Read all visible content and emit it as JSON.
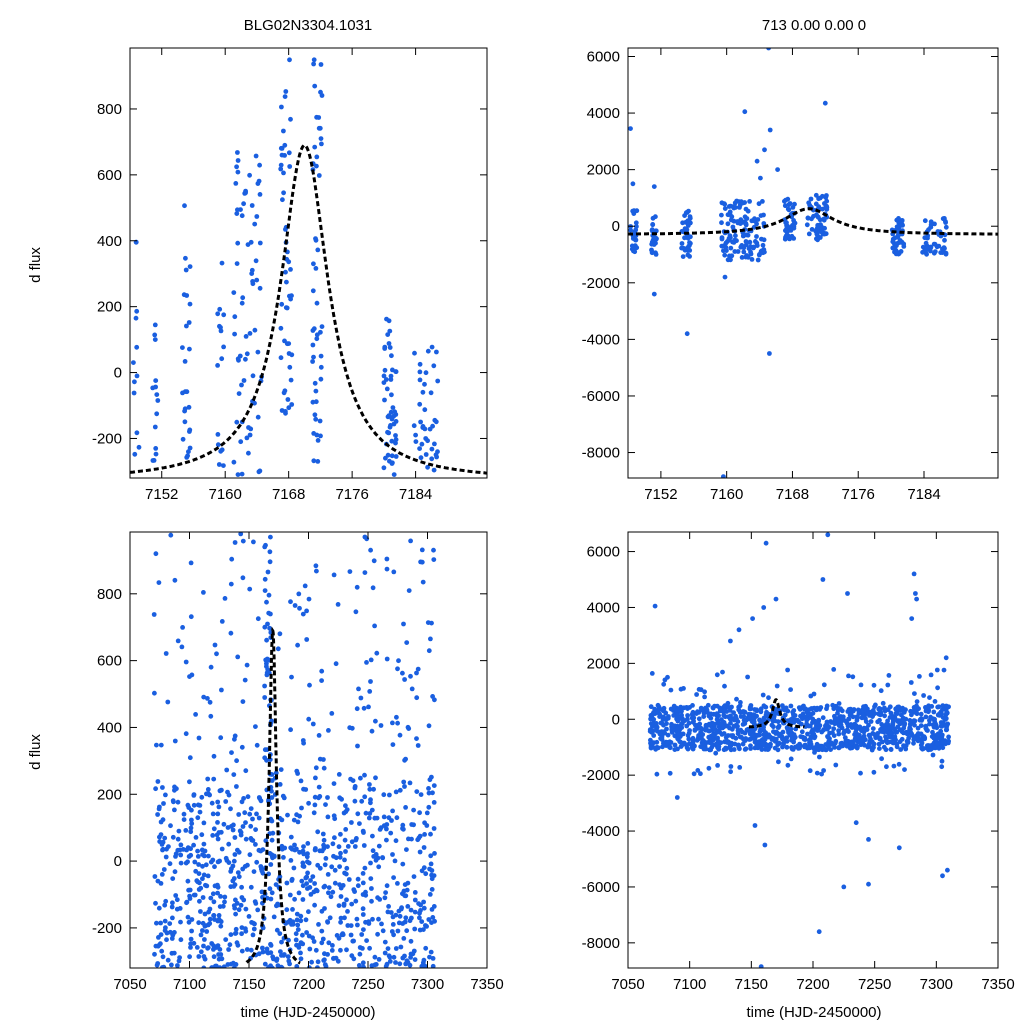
{
  "figure": {
    "titles": {
      "left": "BLG02N3304.1031",
      "right": "713  0.00  0.00  0"
    },
    "ylabel": "d flux",
    "xlabel": "time (HJD-2450000)"
  },
  "chart_data": [
    {
      "name": "top-left",
      "type": "scatter",
      "xlim": [
        7148,
        7193
      ],
      "ylim": [
        -320,
        985
      ],
      "xticks": [
        7152,
        7160,
        7168,
        7176,
        7184
      ],
      "yticks": [
        -200,
        0,
        200,
        400,
        600,
        800
      ],
      "model": {
        "t0": 7170,
        "tE": 8,
        "baseline": -330,
        "peak": 690
      },
      "clusters": [
        {
          "x0": 7148.3,
          "x1": 7149.2,
          "y0": -300,
          "y1": 480,
          "n": 12
        },
        {
          "x0": 7150.8,
          "x1": 7151.5,
          "y0": -310,
          "y1": 160,
          "n": 14
        },
        {
          "x0": 7154.5,
          "x1": 7155.6,
          "y0": -260,
          "y1": 530,
          "n": 26
        },
        {
          "x0": 7158.8,
          "x1": 7160.0,
          "y0": -300,
          "y1": 410,
          "n": 16
        },
        {
          "x0": 7161.0,
          "x1": 7164.6,
          "y0": -310,
          "y1": 680,
          "n": 70
        },
        {
          "x0": 7167.0,
          "x1": 7168.4,
          "y0": -130,
          "y1": 960,
          "n": 50
        },
        {
          "x0": 7171.0,
          "x1": 7172.2,
          "y0": -280,
          "y1": 960,
          "n": 50
        },
        {
          "x0": 7180.0,
          "x1": 7181.6,
          "y0": -310,
          "y1": 180,
          "n": 50
        },
        {
          "x0": 7183.8,
          "x1": 7186.8,
          "y0": -300,
          "y1": 85,
          "n": 40
        }
      ]
    },
    {
      "name": "top-right",
      "type": "scatter",
      "xlim": [
        7148,
        7193
      ],
      "ylim": [
        -8900,
        6300
      ],
      "xticks": [
        7152,
        7160,
        7168,
        7176,
        7184
      ],
      "yticks": [
        -8000,
        -6000,
        -4000,
        -2000,
        0,
        2000,
        4000,
        6000
      ],
      "model": {
        "t0": 7170,
        "tE": 8,
        "baseline": -300,
        "peak": 620
      },
      "clusters": [
        {
          "x0": 7148.3,
          "x1": 7149.2,
          "y0": -900,
          "y1": 600,
          "n": 25
        },
        {
          "x0": 7150.8,
          "x1": 7151.5,
          "y0": -1000,
          "y1": 400,
          "n": 25
        },
        {
          "x0": 7154.5,
          "x1": 7155.6,
          "y0": -1100,
          "y1": 600,
          "n": 40
        },
        {
          "x0": 7159.3,
          "x1": 7164.6,
          "y0": -1200,
          "y1": 900,
          "n": 130
        },
        {
          "x0": 7167.0,
          "x1": 7168.4,
          "y0": -500,
          "y1": 1000,
          "n": 40
        },
        {
          "x0": 7169.8,
          "x1": 7172.2,
          "y0": -500,
          "y1": 1100,
          "n": 60
        },
        {
          "x0": 7180.0,
          "x1": 7181.6,
          "y0": -1000,
          "y1": 300,
          "n": 50
        },
        {
          "x0": 7183.8,
          "x1": 7186.8,
          "y0": -1000,
          "y1": 300,
          "n": 50
        }
      ],
      "outliers": [
        [
          7148.3,
          3450
        ],
        [
          7148.6,
          1500
        ],
        [
          7151.2,
          1400
        ],
        [
          7151.2,
          -2400
        ],
        [
          7155.2,
          -3800
        ],
        [
          7162.2,
          4050
        ],
        [
          7163.7,
          2300
        ],
        [
          7164.1,
          1700
        ],
        [
          7164.6,
          2700
        ],
        [
          7165.2,
          -4500
        ],
        [
          7165.3,
          3400
        ],
        [
          7165.1,
          6300
        ],
        [
          7166.2,
          2000
        ],
        [
          7172.0,
          4350
        ],
        [
          7159.6,
          -8850
        ],
        [
          7159.8,
          -1800
        ]
      ]
    },
    {
      "name": "bottom-left",
      "type": "scatter",
      "xlim": [
        7050,
        7350
      ],
      "ylim": [
        -320,
        985
      ],
      "xticks": [
        7050,
        7100,
        7150,
        7200,
        7250,
        7300,
        7350
      ],
      "yticks": [
        -200,
        0,
        200,
        400,
        600,
        800
      ],
      "model": {
        "t0": 7170,
        "tE": 8,
        "baseline": -330,
        "peak": 690,
        "xrange": [
          7148,
          7193
        ]
      },
      "clusters": [
        {
          "x0": 7070,
          "x1": 7306,
          "y0": -320,
          "y1": 250,
          "n": 900
        },
        {
          "x0": 7070,
          "x1": 7306,
          "y0": 250,
          "y1": 980,
          "n": 170
        },
        {
          "x0": 7163,
          "x1": 7169,
          "y0": 300,
          "y1": 975,
          "n": 40
        }
      ]
    },
    {
      "name": "bottom-right",
      "type": "scatter",
      "xlim": [
        7050,
        7350
      ],
      "ylim": [
        -8900,
        6700
      ],
      "xticks": [
        7050,
        7100,
        7150,
        7200,
        7250,
        7300,
        7350
      ],
      "yticks": [
        -8000,
        -6000,
        -4000,
        -2000,
        0,
        2000,
        4000,
        6000
      ],
      "model": {
        "t0": 7170,
        "tE": 8,
        "baseline": -300,
        "peak": 700,
        "xrange": [
          7148,
          7193
        ]
      },
      "clusters": [
        {
          "x0": 7068,
          "x1": 7310,
          "y0": -1100,
          "y1": 500,
          "n": 1150
        },
        {
          "x0": 7068,
          "x1": 7310,
          "y0": -2000,
          "y1": 1800,
          "n": 120
        }
      ],
      "outliers": [
        [
          7072,
          4050
        ],
        [
          7082,
          1500
        ],
        [
          7090,
          -2800
        ],
        [
          7133,
          2800
        ],
        [
          7140,
          3200
        ],
        [
          7151,
          3600
        ],
        [
          7153,
          -3800
        ],
        [
          7160,
          4000
        ],
        [
          7161,
          -4500
        ],
        [
          7162,
          6300
        ],
        [
          7170,
          4300
        ],
        [
          7205,
          -7600
        ],
        [
          7208,
          5000
        ],
        [
          7212,
          6600
        ],
        [
          7225,
          -6000
        ],
        [
          7228,
          4500
        ],
        [
          7235,
          -3700
        ],
        [
          7245,
          -5900
        ],
        [
          7245,
          -4300
        ],
        [
          7270,
          -4600
        ],
        [
          7282,
          5200
        ],
        [
          7283,
          4500
        ],
        [
          7284,
          4300
        ],
        [
          7280,
          3600
        ],
        [
          7305,
          -5600
        ],
        [
          7309,
          -5400
        ],
        [
          7308,
          2200
        ],
        [
          7158,
          -8850
        ]
      ]
    }
  ]
}
